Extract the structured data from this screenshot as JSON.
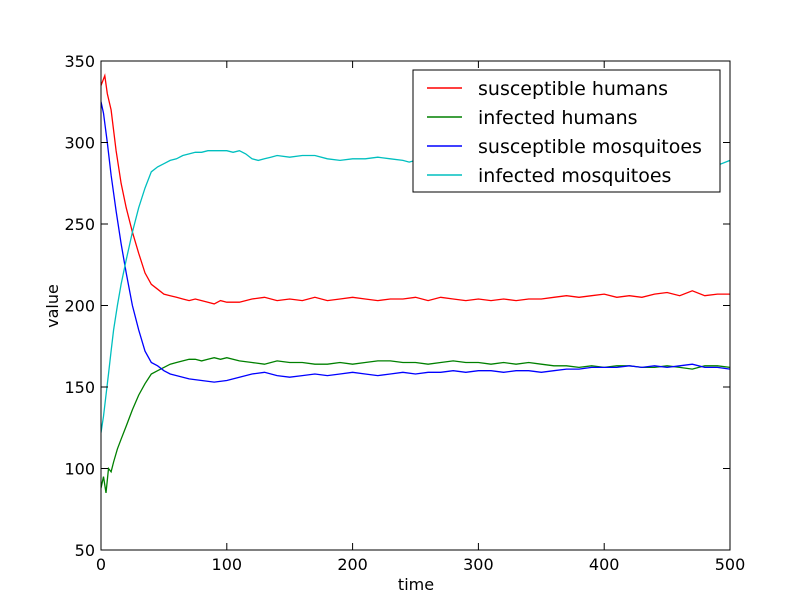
{
  "chart_data": {
    "type": "line",
    "title": "",
    "xlabel": "time",
    "ylabel": "value",
    "xlim": [
      0,
      500
    ],
    "ylim": [
      50,
      350
    ],
    "xticks": [
      0,
      100,
      200,
      300,
      400,
      500
    ],
    "yticks": [
      50,
      100,
      150,
      200,
      250,
      300,
      350
    ],
    "grid": false,
    "legend": "top-right",
    "series": [
      {
        "name": "susceptible humans",
        "color": "#ff0000",
        "x": [
          0,
          3,
          5,
          8,
          12,
          16,
          20,
          25,
          30,
          35,
          40,
          45,
          50,
          55,
          60,
          65,
          70,
          75,
          80,
          85,
          90,
          95,
          100,
          110,
          120,
          130,
          140,
          150,
          160,
          170,
          180,
          190,
          200,
          210,
          220,
          230,
          240,
          250,
          260,
          270,
          280,
          290,
          300,
          310,
          320,
          330,
          340,
          350,
          360,
          370,
          380,
          390,
          400,
          410,
          420,
          430,
          440,
          450,
          460,
          470,
          480,
          490,
          500
        ],
        "y": [
          335,
          341,
          330,
          320,
          295,
          275,
          260,
          245,
          232,
          220,
          213,
          210,
          207,
          206,
          205,
          204,
          203,
          204,
          203,
          202,
          201,
          203,
          202,
          202,
          204,
          205,
          203,
          204,
          203,
          205,
          203,
          204,
          205,
          204,
          203,
          204,
          204,
          205,
          203,
          205,
          204,
          203,
          204,
          203,
          204,
          203,
          204,
          204,
          205,
          206,
          205,
          206,
          207,
          205,
          206,
          205,
          207,
          208,
          206,
          209,
          206,
          207,
          207
        ]
      },
      {
        "name": "infected humans",
        "color": "#008000",
        "x": [
          0,
          2,
          4,
          6,
          8,
          10,
          13,
          16,
          20,
          25,
          30,
          35,
          40,
          45,
          50,
          55,
          60,
          65,
          70,
          75,
          80,
          85,
          90,
          95,
          100,
          110,
          120,
          130,
          140,
          150,
          160,
          170,
          180,
          190,
          200,
          210,
          220,
          230,
          240,
          250,
          260,
          270,
          280,
          290,
          300,
          310,
          320,
          330,
          340,
          350,
          360,
          370,
          380,
          390,
          400,
          410,
          420,
          430,
          440,
          450,
          460,
          470,
          480,
          490,
          500
        ],
        "y": [
          88,
          95,
          85,
          100,
          98,
          104,
          112,
          118,
          126,
          136,
          145,
          152,
          158,
          160,
          162,
          164,
          165,
          166,
          167,
          167,
          166,
          167,
          168,
          167,
          168,
          166,
          165,
          164,
          166,
          165,
          165,
          164,
          164,
          165,
          164,
          165,
          166,
          166,
          165,
          165,
          164,
          165,
          166,
          165,
          165,
          164,
          165,
          164,
          165,
          164,
          163,
          163,
          162,
          163,
          162,
          163,
          163,
          162,
          162,
          163,
          162,
          161,
          163,
          163,
          162
        ]
      },
      {
        "name": "susceptible mosquitoes",
        "color": "#0000ff",
        "x": [
          0,
          2,
          5,
          8,
          12,
          16,
          20,
          25,
          30,
          35,
          40,
          45,
          50,
          55,
          60,
          70,
          80,
          90,
          100,
          110,
          120,
          130,
          140,
          150,
          160,
          170,
          180,
          190,
          200,
          210,
          220,
          230,
          240,
          250,
          260,
          270,
          280,
          290,
          300,
          310,
          320,
          330,
          340,
          350,
          360,
          370,
          380,
          390,
          400,
          410,
          420,
          430,
          440,
          450,
          460,
          470,
          480,
          490,
          500
        ],
        "y": [
          325,
          318,
          300,
          280,
          258,
          238,
          220,
          200,
          185,
          172,
          165,
          163,
          160,
          158,
          157,
          155,
          154,
          153,
          154,
          156,
          158,
          159,
          157,
          156,
          157,
          158,
          157,
          158,
          159,
          158,
          157,
          158,
          159,
          158,
          159,
          159,
          160,
          159,
          160,
          160,
          159,
          160,
          160,
          159,
          160,
          161,
          161,
          162,
          162,
          162,
          163,
          162,
          163,
          162,
          163,
          164,
          162,
          162,
          161
        ]
      },
      {
        "name": "infected mosquitoes",
        "color": "#00bfbf",
        "x": [
          0,
          2,
          4,
          6,
          8,
          10,
          13,
          16,
          20,
          25,
          30,
          35,
          40,
          45,
          50,
          55,
          60,
          65,
          70,
          75,
          80,
          85,
          90,
          95,
          100,
          105,
          110,
          115,
          120,
          125,
          130,
          135,
          140,
          150,
          160,
          170,
          180,
          190,
          200,
          210,
          220,
          230,
          240,
          245,
          250
        ],
        "y": [
          122,
          132,
          145,
          158,
          172,
          185,
          200,
          213,
          228,
          245,
          260,
          272,
          282,
          285,
          287,
          289,
          290,
          292,
          293,
          294,
          294,
          295,
          295,
          295,
          295,
          294,
          295,
          293,
          290,
          289,
          290,
          291,
          292,
          291,
          292,
          292,
          290,
          289,
          290,
          290,
          291,
          290,
          289,
          288,
          289
        ]
      }
    ],
    "tail_points": [
      {
        "series": "infected mosquitoes",
        "x": 490,
        "y": 286
      },
      {
        "series": "infected mosquitoes",
        "x": 500,
        "y": 289
      }
    ]
  }
}
